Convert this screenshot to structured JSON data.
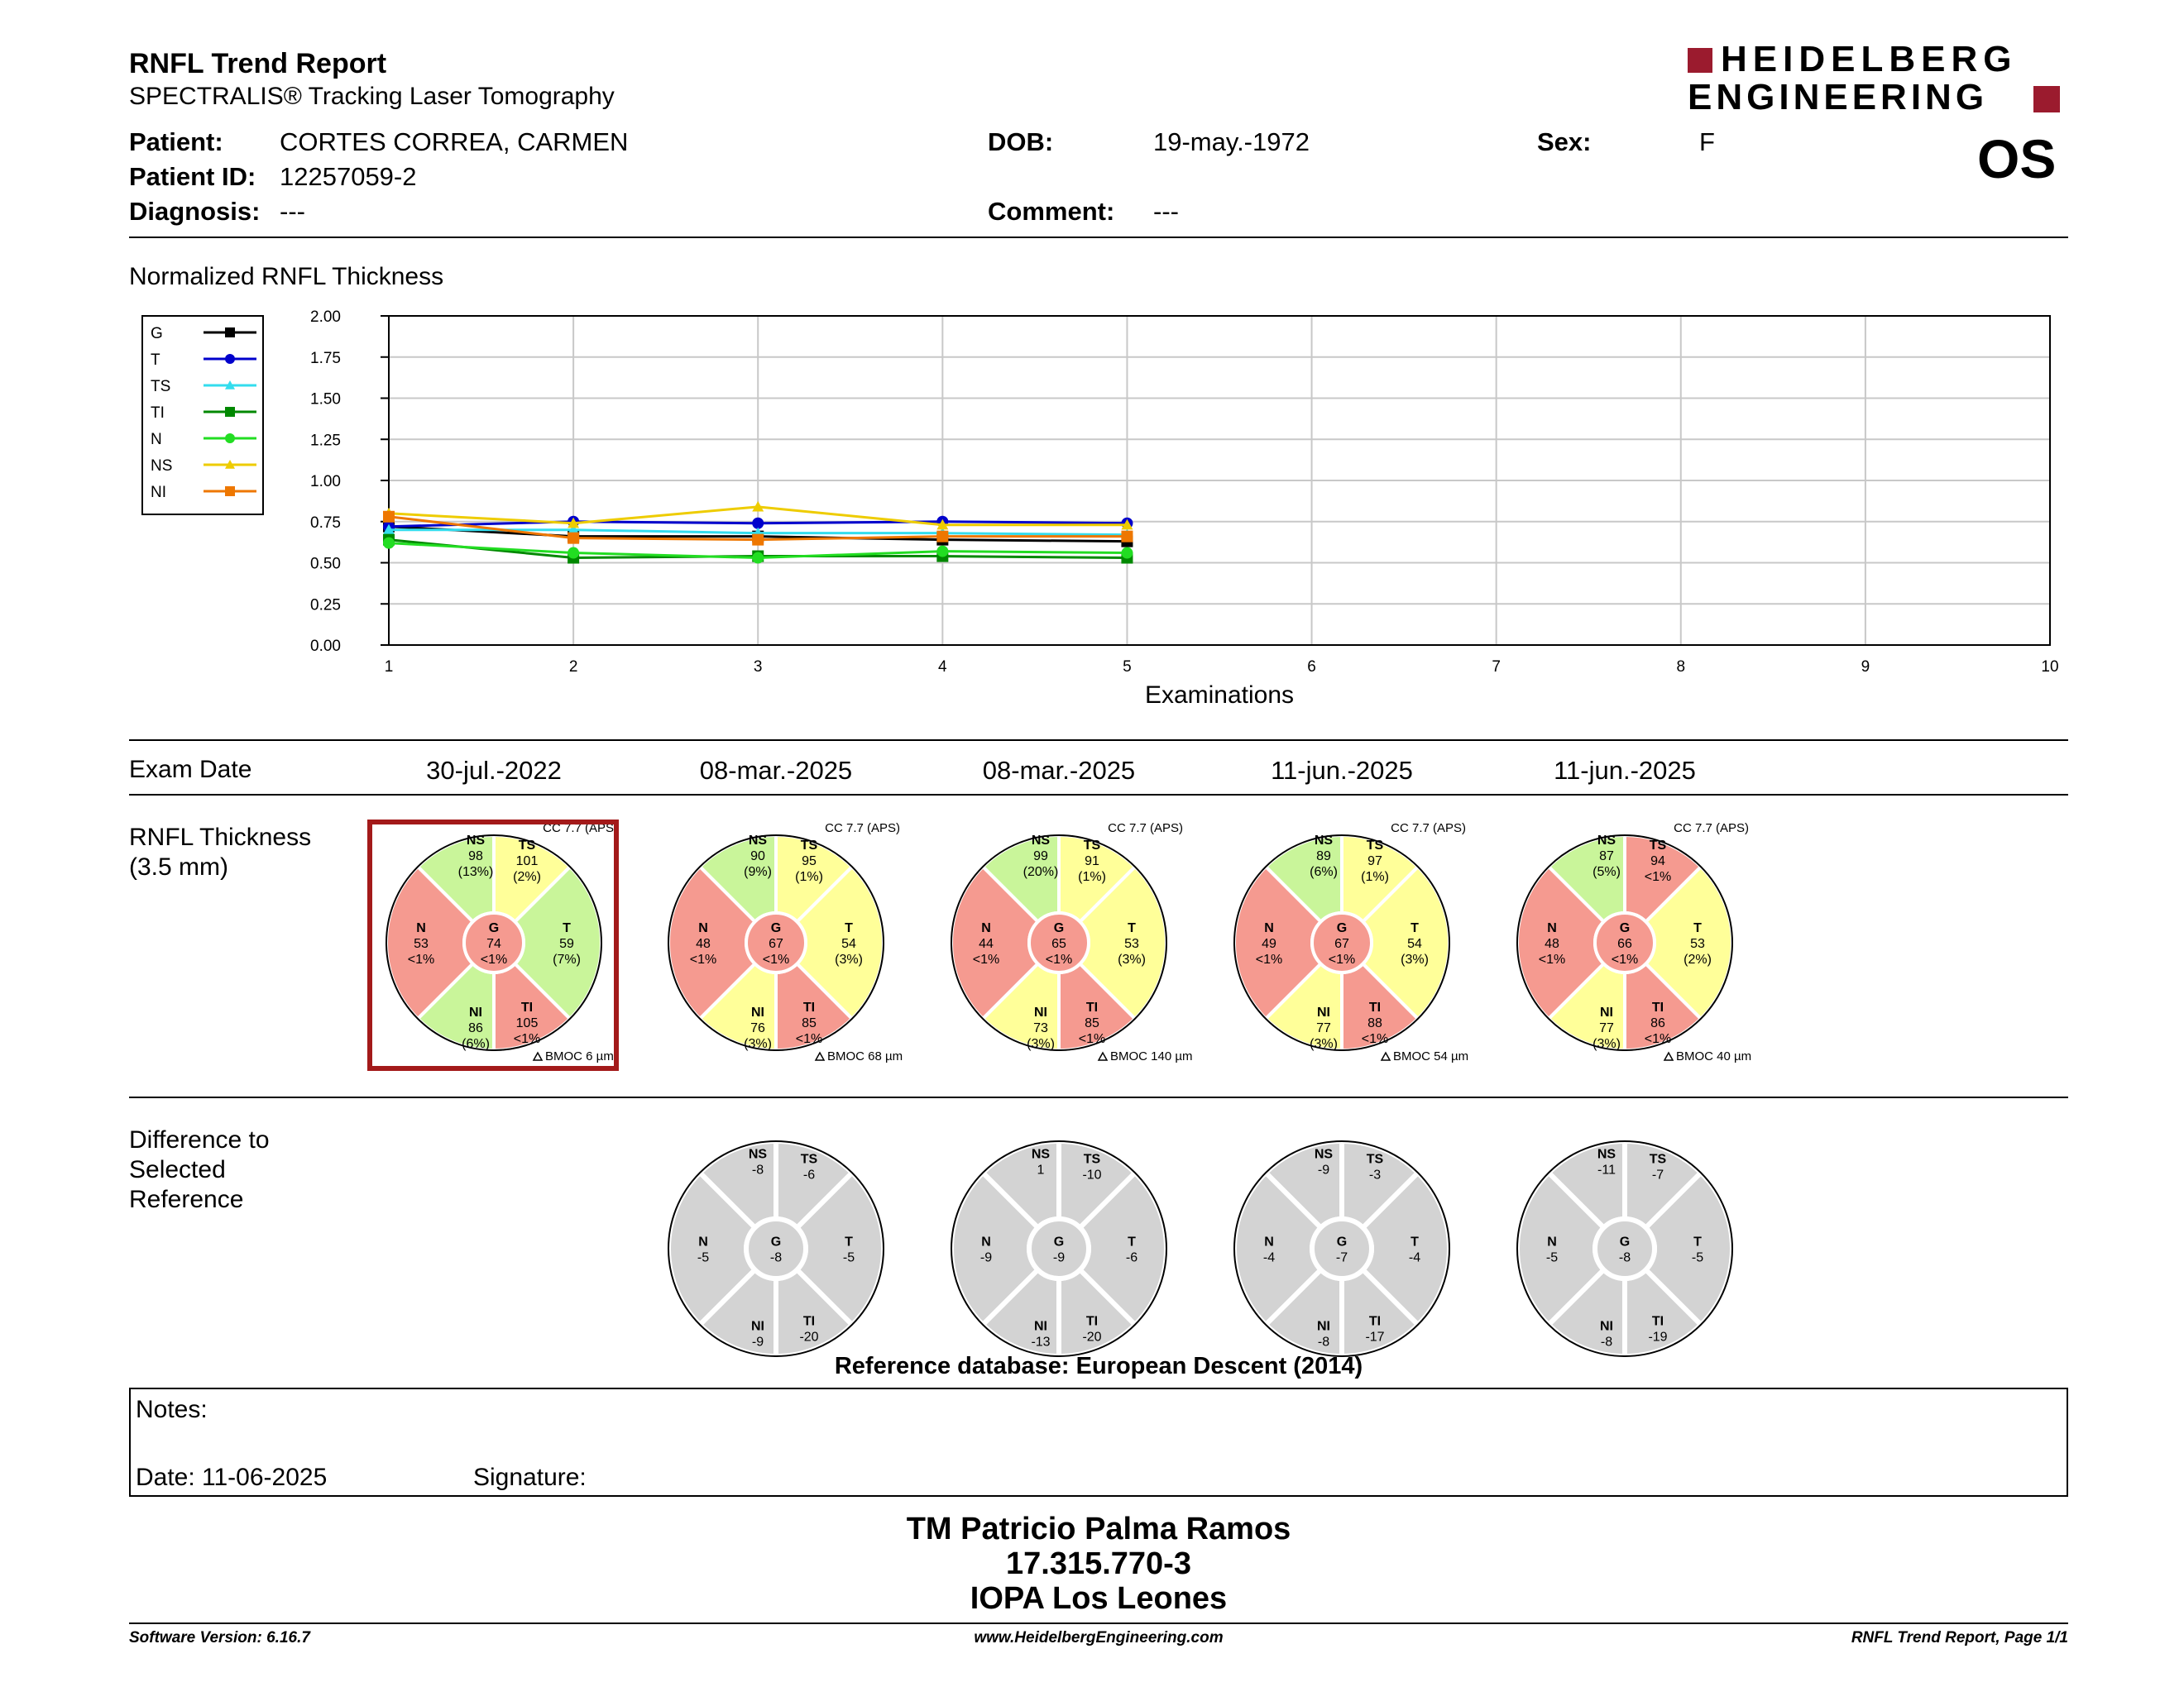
{
  "header": {
    "title": "RNFL Trend Report",
    "subtitle": "SPECTRALIS® Tracking Laser Tomography",
    "logo_line1": "HEIDELBERG",
    "logo_line2": "ENGINEERING",
    "eye": "OS"
  },
  "patient": {
    "patient_label": "Patient:",
    "patient_value": "CORTES CORREA, CARMEN",
    "id_label": "Patient ID:",
    "id_value": "12257059-2",
    "diag_label": "Diagnosis:",
    "diag_value": "---",
    "dob_label": "DOB:",
    "dob_value": "19-may.-1972",
    "comment_label": "Comment:",
    "comment_value": "---",
    "sex_label": "Sex:",
    "sex_value": "F"
  },
  "chart_title": "Normalized RNFL Thickness",
  "chart_data": {
    "type": "line",
    "xlabel": "Examinations",
    "ylabel": "",
    "x": [
      1,
      2,
      3,
      4,
      5
    ],
    "xlim": [
      1,
      10
    ],
    "ylim": [
      0,
      2
    ],
    "x_ticks": [
      "1",
      "2",
      "3",
      "4",
      "5",
      "6",
      "7",
      "8",
      "9",
      "10"
    ],
    "y_ticks": [
      "0.00",
      "0.25",
      "0.50",
      "0.75",
      "1.00",
      "1.25",
      "1.50",
      "1.75",
      "2.00"
    ],
    "grid": true,
    "legend_position": "top-left, outside plot",
    "series": [
      {
        "name": "G",
        "color": "#000000",
        "marker": "square",
        "values": [
          0.72,
          0.66,
          0.66,
          0.64,
          0.63
        ]
      },
      {
        "name": "T",
        "color": "#0000cc",
        "marker": "circle",
        "values": [
          0.72,
          0.75,
          0.74,
          0.75,
          0.74
        ]
      },
      {
        "name": "TS",
        "color": "#33ddee",
        "marker": "triangle",
        "values": [
          0.7,
          0.7,
          0.68,
          0.68,
          0.67
        ]
      },
      {
        "name": "TI",
        "color": "#008800",
        "marker": "square",
        "values": [
          0.64,
          0.53,
          0.54,
          0.54,
          0.53
        ]
      },
      {
        "name": "N",
        "color": "#22dd22",
        "marker": "circle",
        "values": [
          0.62,
          0.56,
          0.53,
          0.57,
          0.56
        ]
      },
      {
        "name": "NS",
        "color": "#eecc00",
        "marker": "triangle",
        "values": [
          0.8,
          0.74,
          0.84,
          0.73,
          0.73
        ]
      },
      {
        "name": "NI",
        "color": "#ee7700",
        "marker": "square",
        "values": [
          0.78,
          0.65,
          0.64,
          0.66,
          0.66
        ]
      }
    ]
  },
  "exam_section_label": "Exam Date",
  "exam_dates": [
    "30-jul.-2022",
    "08-mar.-2025",
    "08-mar.-2025",
    "11-jun.-2025",
    "11-jun.-2025"
  ],
  "thickness_label_1": "RNFL Thickness",
  "thickness_label_2": "(3.5 mm)",
  "colors": {
    "green": "#c9f59a",
    "yellow": "#ffff99",
    "red": "#f59a90",
    "gray": "#d3d3d3",
    "selected_border": "#a31a1a"
  },
  "thickness_exams": [
    {
      "cc": "CC 7.7 (APS)",
      "bmoc": "BMOC 6 µm",
      "sectors": {
        "NS": {
          "value": "98",
          "pct": "(13%)",
          "color": "green"
        },
        "TS": {
          "value": "101",
          "pct": "(2%)",
          "color": "yellow"
        },
        "T": {
          "value": "59",
          "pct": "(7%)",
          "color": "green"
        },
        "TI": {
          "value": "105",
          "pct": "<1%",
          "color": "red"
        },
        "NI": {
          "value": "86",
          "pct": "(6%)",
          "color": "green"
        },
        "N": {
          "value": "53",
          "pct": "<1%",
          "color": "red"
        },
        "G": {
          "value": "74",
          "pct": "<1%",
          "color": "red"
        }
      }
    },
    {
      "cc": "CC 7.7 (APS)",
      "bmoc": "BMOC 68 µm",
      "sectors": {
        "NS": {
          "value": "90",
          "pct": "(9%)",
          "color": "green"
        },
        "TS": {
          "value": "95",
          "pct": "(1%)",
          "color": "yellow"
        },
        "T": {
          "value": "54",
          "pct": "(3%)",
          "color": "yellow"
        },
        "TI": {
          "value": "85",
          "pct": "<1%",
          "color": "red"
        },
        "NI": {
          "value": "76",
          "pct": "(3%)",
          "color": "yellow"
        },
        "N": {
          "value": "48",
          "pct": "<1%",
          "color": "red"
        },
        "G": {
          "value": "67",
          "pct": "<1%",
          "color": "red"
        }
      }
    },
    {
      "cc": "CC 7.7 (APS)",
      "bmoc": "BMOC 140 µm",
      "sectors": {
        "NS": {
          "value": "99",
          "pct": "(20%)",
          "color": "green"
        },
        "TS": {
          "value": "91",
          "pct": "(1%)",
          "color": "yellow"
        },
        "T": {
          "value": "53",
          "pct": "(3%)",
          "color": "yellow"
        },
        "TI": {
          "value": "85",
          "pct": "<1%",
          "color": "red"
        },
        "NI": {
          "value": "73",
          "pct": "(3%)",
          "color": "yellow"
        },
        "N": {
          "value": "44",
          "pct": "<1%",
          "color": "red"
        },
        "G": {
          "value": "65",
          "pct": "<1%",
          "color": "red"
        }
      }
    },
    {
      "cc": "CC 7.7 (APS)",
      "bmoc": "BMOC 54 µm",
      "sectors": {
        "NS": {
          "value": "89",
          "pct": "(6%)",
          "color": "green"
        },
        "TS": {
          "value": "97",
          "pct": "(1%)",
          "color": "yellow"
        },
        "T": {
          "value": "54",
          "pct": "(3%)",
          "color": "yellow"
        },
        "TI": {
          "value": "88",
          "pct": "<1%",
          "color": "red"
        },
        "NI": {
          "value": "77",
          "pct": "(3%)",
          "color": "yellow"
        },
        "N": {
          "value": "49",
          "pct": "<1%",
          "color": "red"
        },
        "G": {
          "value": "67",
          "pct": "<1%",
          "color": "red"
        }
      }
    },
    {
      "cc": "CC 7.7 (APS)",
      "bmoc": "BMOC 40 µm",
      "sectors": {
        "NS": {
          "value": "87",
          "pct": "(5%)",
          "color": "green"
        },
        "TS": {
          "value": "94",
          "pct": "<1%",
          "color": "red"
        },
        "T": {
          "value": "53",
          "pct": "(2%)",
          "color": "yellow"
        },
        "TI": {
          "value": "86",
          "pct": "<1%",
          "color": "red"
        },
        "NI": {
          "value": "77",
          "pct": "(3%)",
          "color": "yellow"
        },
        "N": {
          "value": "48",
          "pct": "<1%",
          "color": "red"
        },
        "G": {
          "value": "66",
          "pct": "<1%",
          "color": "red"
        }
      }
    }
  ],
  "difference_label_1": "Difference to",
  "difference_label_2": "Selected",
  "difference_label_3": "Reference",
  "difference_exams": [
    {
      "NS": "-8",
      "TS": "-6",
      "T": "-5",
      "TI": "-20",
      "NI": "-9",
      "N": "-5",
      "G": "-8"
    },
    {
      "NS": "1",
      "TS": "-10",
      "T": "-6",
      "TI": "-20",
      "NI": "-13",
      "N": "-9",
      "G": "-9"
    },
    {
      "NS": "-9",
      "TS": "-3",
      "T": "-4",
      "TI": "-17",
      "NI": "-8",
      "N": "-4",
      "G": "-7"
    },
    {
      "NS": "-11",
      "TS": "-7",
      "T": "-5",
      "TI": "-19",
      "NI": "-8",
      "N": "-5",
      "G": "-8"
    }
  ],
  "reference_db": "Reference database: European Descent (2014)",
  "notes": {
    "notes_label": "Notes:",
    "date_label": "Date: 11-06-2025",
    "signature_label": "Signature:"
  },
  "signer": {
    "name": "TM Patricio Palma Ramos",
    "id": "17.315.770-3",
    "institution": "IOPA Los Leones"
  },
  "footer": {
    "version": "Software Version: 6.16.7",
    "website": "www.HeidelbergEngineering.com",
    "page": "RNFL Trend Report, Page 1/1"
  }
}
